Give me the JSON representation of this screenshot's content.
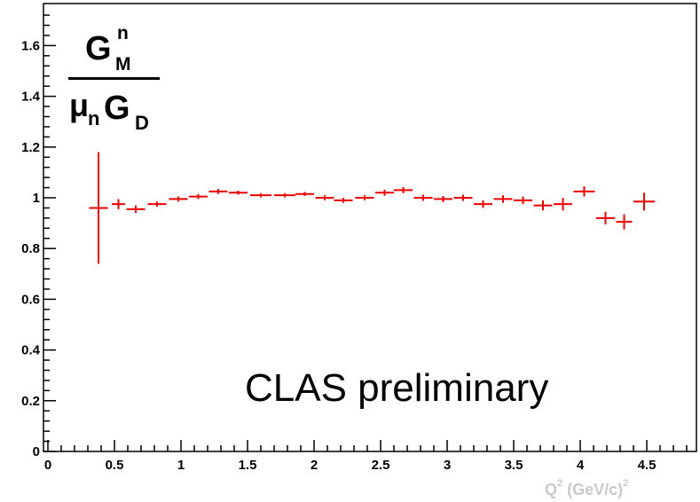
{
  "chart_data": {
    "type": "scatter",
    "title": "",
    "xlabel": {
      "base": "Q",
      "sup1": "2",
      "mid": " (GeV/c)",
      "sup2": "2"
    },
    "ylabel": {
      "numerator": {
        "base": "G",
        "sup": "n",
        "sub": "M"
      },
      "denominator": {
        "prefix": "μ",
        "prefix_sub": "n",
        "base": "G",
        "sub": "D"
      }
    },
    "xlim": [
      0,
      4.9
    ],
    "ylim": [
      0,
      1.75
    ],
    "x_ticks": [
      0,
      0.5,
      1,
      1.5,
      2,
      2.5,
      3,
      3.5,
      4,
      4.5
    ],
    "x_tick_labels": [
      "0",
      "0.5",
      "1",
      "1.5",
      "2",
      "2.5",
      "3",
      "3.5",
      "4",
      "4.5"
    ],
    "y_ticks": [
      0,
      0.2,
      0.4,
      0.6,
      0.8,
      1,
      1.2,
      1.4,
      1.6
    ],
    "y_tick_labels": [
      "0",
      "0.2",
      "0.4",
      "0.6",
      "0.8",
      "1",
      "1.2",
      "1.4",
      "1.6"
    ],
    "grid": false,
    "marker_color": "#ee0000",
    "annotation": "CLAS preliminary",
    "series": [
      {
        "points": [
          {
            "x": 0.38,
            "y": 0.96,
            "xerr": 0.07,
            "yerr": 0.22
          },
          {
            "x": 0.53,
            "y": 0.975,
            "xerr": 0.05,
            "yerr": 0.02
          },
          {
            "x": 0.66,
            "y": 0.955,
            "xerr": 0.07,
            "yerr": 0.015
          },
          {
            "x": 0.82,
            "y": 0.975,
            "xerr": 0.07,
            "yerr": 0.01
          },
          {
            "x": 0.98,
            "y": 0.995,
            "xerr": 0.07,
            "yerr": 0.01
          },
          {
            "x": 1.13,
            "y": 1.005,
            "xerr": 0.07,
            "yerr": 0.01
          },
          {
            "x": 1.28,
            "y": 1.025,
            "xerr": 0.07,
            "yerr": 0.01
          },
          {
            "x": 1.43,
            "y": 1.02,
            "xerr": 0.07,
            "yerr": 0.008
          },
          {
            "x": 1.6,
            "y": 1.01,
            "xerr": 0.08,
            "yerr": 0.008
          },
          {
            "x": 1.78,
            "y": 1.01,
            "xerr": 0.08,
            "yerr": 0.008
          },
          {
            "x": 1.93,
            "y": 1.015,
            "xerr": 0.07,
            "yerr": 0.008
          },
          {
            "x": 2.08,
            "y": 1.0,
            "xerr": 0.07,
            "yerr": 0.01
          },
          {
            "x": 2.22,
            "y": 0.99,
            "xerr": 0.07,
            "yerr": 0.01
          },
          {
            "x": 2.38,
            "y": 1.0,
            "xerr": 0.07,
            "yerr": 0.01
          },
          {
            "x": 2.53,
            "y": 1.02,
            "xerr": 0.07,
            "yerr": 0.012
          },
          {
            "x": 2.67,
            "y": 1.03,
            "xerr": 0.07,
            "yerr": 0.012
          },
          {
            "x": 2.82,
            "y": 1.0,
            "xerr": 0.07,
            "yerr": 0.012
          },
          {
            "x": 2.97,
            "y": 0.995,
            "xerr": 0.07,
            "yerr": 0.012
          },
          {
            "x": 3.12,
            "y": 1.0,
            "xerr": 0.07,
            "yerr": 0.012
          },
          {
            "x": 3.27,
            "y": 0.975,
            "xerr": 0.07,
            "yerr": 0.015
          },
          {
            "x": 3.42,
            "y": 0.995,
            "xerr": 0.07,
            "yerr": 0.015
          },
          {
            "x": 3.57,
            "y": 0.99,
            "xerr": 0.07,
            "yerr": 0.015
          },
          {
            "x": 3.72,
            "y": 0.97,
            "xerr": 0.07,
            "yerr": 0.02
          },
          {
            "x": 3.87,
            "y": 0.975,
            "xerr": 0.07,
            "yerr": 0.025
          },
          {
            "x": 4.03,
            "y": 1.025,
            "xerr": 0.08,
            "yerr": 0.02
          },
          {
            "x": 4.19,
            "y": 0.92,
            "xerr": 0.07,
            "yerr": 0.025
          },
          {
            "x": 4.33,
            "y": 0.905,
            "xerr": 0.06,
            "yerr": 0.03
          },
          {
            "x": 4.48,
            "y": 0.985,
            "xerr": 0.08,
            "yerr": 0.035
          }
        ]
      }
    ]
  }
}
